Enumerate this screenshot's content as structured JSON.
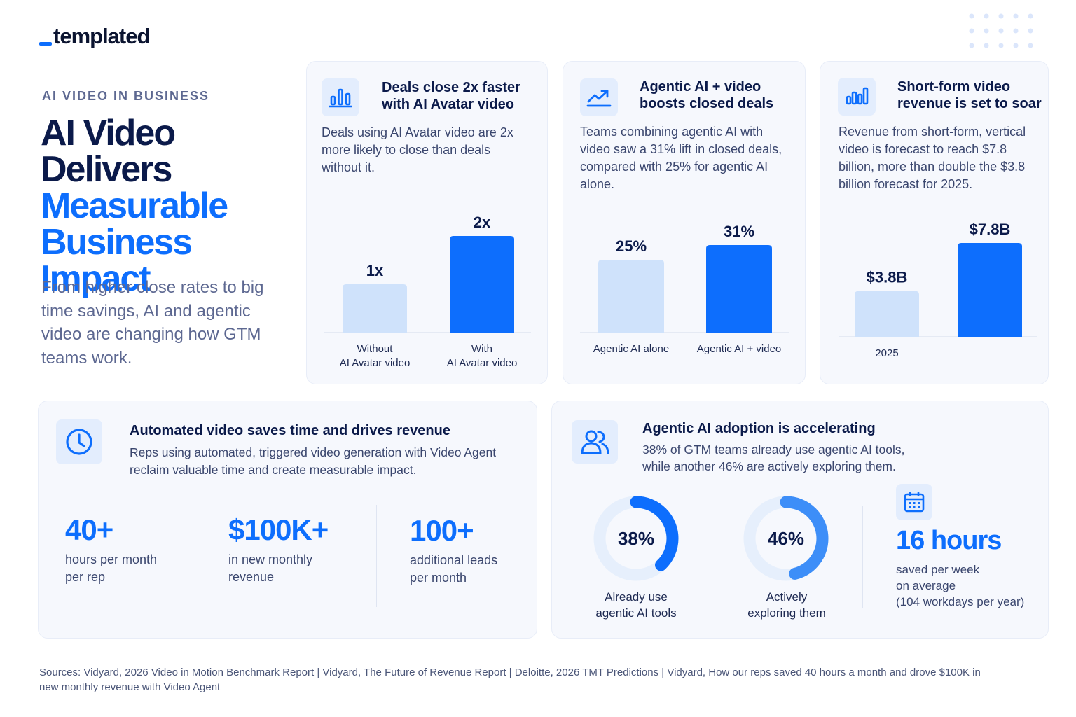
{
  "brand": {
    "logo_text": "templated"
  },
  "hero": {
    "eyebrow": "AI VIDEO IN BUSINESS",
    "title_line1": "AI Video",
    "title_line2": "Delivers",
    "title_line3": "Measurable",
    "title_line4": "Business Impact",
    "subtitle": "From higher close rates to big time savings, AI and agentic video are changing how GTM teams work."
  },
  "cards": [
    {
      "icon": "bar-chart-icon",
      "title_line1": "Deals close 2x faster",
      "title_line2": "with AI Avatar video",
      "desc": "Deals using AI Avatar video are 2x more likely to close than deals without it."
    },
    {
      "icon": "trending-up-icon",
      "title_line1": "Agentic AI + video",
      "title_line2": "boosts closed deals",
      "desc": "Teams combining agentic AI with video saw a 31% lift in closed deals, compared with 25% for agentic AI alone."
    },
    {
      "icon": "bar-chart-icon",
      "title_line1": "Short-form video",
      "title_line2": "revenue is set to soar",
      "desc": "Revenue from short-form, vertical video is forecast to reach $7.8 billion, more than double the $3.8 billion forecast for 2025."
    }
  ],
  "chart_data": [
    {
      "type": "bar",
      "categories": [
        [
          "Without",
          "AI Avatar video"
        ],
        [
          "With",
          "AI Avatar video"
        ]
      ],
      "values": [
        1,
        2
      ],
      "value_labels": [
        "1x",
        "2x"
      ],
      "ylim": [
        0,
        2
      ]
    },
    {
      "type": "bar",
      "categories": [
        [
          "Agentic AI alone"
        ],
        [
          "Agentic AI + video"
        ]
      ],
      "values": [
        25,
        31
      ],
      "value_labels": [
        "25%",
        "31%"
      ],
      "ylim": [
        15,
        31
      ]
    },
    {
      "type": "bar",
      "categories": [
        [
          "2025"
        ],
        [
          ""
        ]
      ],
      "values": [
        3.8,
        7.8
      ],
      "value_labels": [
        "$3.8B",
        "$7.8B"
      ],
      "ylim": [
        0,
        7.8
      ]
    },
    {
      "type": "pie",
      "values": [
        38,
        46
      ],
      "value_labels": [
        "38%",
        "46%"
      ],
      "labels": [
        [
          "Already use",
          "agentic AI tools"
        ],
        [
          "Actively",
          "exploring them"
        ]
      ]
    }
  ],
  "time_card": {
    "icon": "clock-icon",
    "title": "Automated video saves time and drives revenue",
    "desc": "Reps using automated, triggered video generation with Video Agent reclaim valuable time and create measurable impact.",
    "stats": [
      {
        "value": "40+",
        "line1": "hours per month",
        "line2": "per rep"
      },
      {
        "value": "$100K+",
        "line1": "in new monthly",
        "line2": "revenue"
      },
      {
        "value": "100+",
        "line1": "additional leads",
        "line2": "per month"
      }
    ]
  },
  "adoption_card": {
    "icon": "users-icon",
    "title": "Agentic AI adoption is accelerating",
    "desc_line1": "38% of GTM teams already use agentic AI tools,",
    "desc_line2": "while another 46% are actively exploring them.",
    "hours": {
      "icon": "calendar-icon",
      "value": "16 hours",
      "line1": "saved per week",
      "line2": "on average",
      "line3": "(104 workdays per year)"
    }
  },
  "footer": {
    "sources": "Sources: Vidyard, 2026 Video in Motion Benchmark Report | Vidyard, The Future of Revenue Report | Deloitte, 2026 TMT Predictions | Vidyard, How our reps saved 40 hours a month and drove $100K in new monthly revenue with Video Agent"
  },
  "colors": {
    "accent": "#0d6efd",
    "accent_light": "#cfe2fb",
    "navy": "#0b1a4a",
    "ring_track": "#e6effc",
    "ring_2": "#3d8ef8"
  }
}
